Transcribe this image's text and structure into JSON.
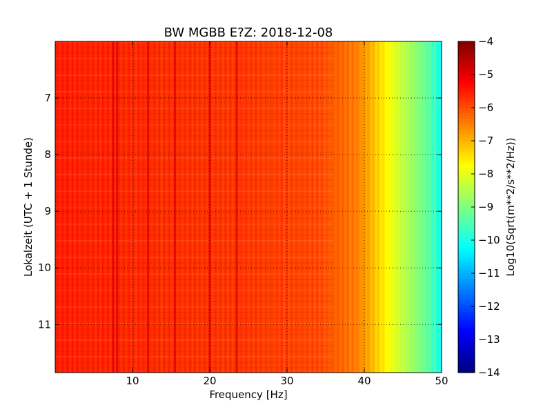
{
  "chart_data": {
    "type": "heatmap",
    "title": "BW MGBB E?Z: 2018-12-08",
    "xlabel": "Frequency [Hz]",
    "ylabel": "Lokalzeit (UTC + 1 Stunde)",
    "xlim": [
      0,
      50
    ],
    "ylim": [
      6.0,
      11.85
    ],
    "y_inverted": true,
    "x_ticks": [
      10,
      20,
      30,
      40,
      50
    ],
    "y_ticks": [
      7,
      8,
      9,
      10,
      11
    ],
    "grid": true,
    "colormap": "jet",
    "colorbar": {
      "label": "Log10(Sqrt(m**2/s**2/Hz))",
      "range": [
        -14,
        -4
      ],
      "ticks": [
        -4,
        -5,
        -6,
        -7,
        -8,
        -9,
        -10,
        -11,
        -12,
        -13,
        -14
      ]
    },
    "spectral_profile": {
      "frequency_hz": [
        0,
        5,
        10,
        15,
        20,
        25,
        30,
        33,
        35,
        37,
        39,
        40,
        41,
        42,
        43,
        44,
        45,
        46,
        47,
        48,
        49,
        50
      ],
      "value": [
        -5.55,
        -5.6,
        -5.65,
        -5.7,
        -5.75,
        -5.8,
        -5.9,
        -5.95,
        -6.05,
        -6.25,
        -6.5,
        -6.75,
        -7.05,
        -7.4,
        -7.75,
        -8.05,
        -8.35,
        -8.65,
        -8.95,
        -9.25,
        -9.6,
        -10.1
      ]
    },
    "spectral_lines_hz": [
      7.5,
      8.0,
      12.0,
      15.5,
      20.0,
      23.5
    ]
  }
}
